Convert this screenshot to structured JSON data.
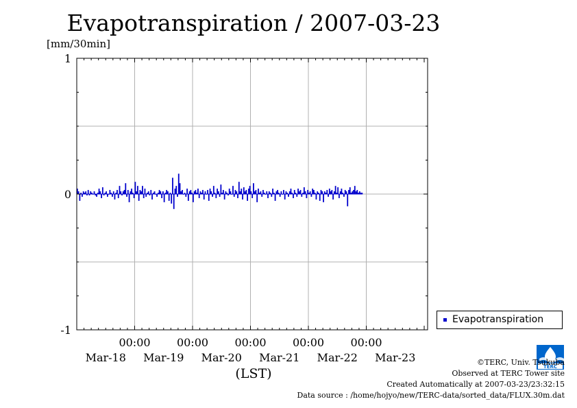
{
  "header": {
    "title": "Evapotranspiration / 2007-03-23",
    "unit": "[mm/30min]"
  },
  "chart_data": {
    "type": "bar",
    "title": "Evapotranspiration / 2007-03-23",
    "ylabel": "[mm/30min]",
    "xlabel": "(LST)",
    "ylim": [
      -1,
      1
    ],
    "yticks": [
      "1",
      "0",
      "-1"
    ],
    "xlim_days": [
      0,
      6
    ],
    "xtick_times": [
      "00:00",
      "00:00",
      "00:00",
      "00:00",
      "00:00"
    ],
    "xtick_dates": [
      "Mar-18",
      "Mar-19",
      "Mar-20",
      "Mar-21",
      "Mar-22",
      "Mar-23"
    ],
    "grid": true,
    "legend_position": "right-bottom",
    "series": [
      {
        "name": "Evapotranspiration",
        "color": "#0000cc",
        "interval": "30min",
        "start": "2007-03-17T00:00",
        "values": [
          0.04,
          0.02,
          -0.05,
          0.01,
          -0.02,
          0.02,
          0.01,
          0.02,
          -0.01,
          0.03,
          -0.01,
          0.02,
          0.01,
          0.0,
          0.02,
          -0.01,
          -0.02,
          0.01,
          0.04,
          0.02,
          -0.03,
          0.05,
          -0.01,
          0.01,
          0.02,
          -0.02,
          0.0,
          0.03,
          0.01,
          -0.02,
          0.02,
          -0.04,
          0.01,
          0.03,
          -0.03,
          0.06,
          0.02,
          -0.01,
          0.02,
          0.03,
          0.08,
          -0.02,
          0.03,
          -0.06,
          0.02,
          0.04,
          0.01,
          -0.03,
          0.09,
          0.02,
          0.06,
          -0.05,
          0.03,
          0.02,
          0.06,
          -0.03,
          0.04,
          -0.02,
          0.01,
          0.02,
          -0.01,
          0.03,
          -0.04,
          0.01,
          0.02,
          0.0,
          -0.02,
          0.01,
          0.03,
          0.02,
          -0.03,
          0.02,
          -0.06,
          0.01,
          0.03,
          0.02,
          -0.05,
          0.01,
          -0.07,
          0.12,
          -0.11,
          0.04,
          0.06,
          -0.02,
          0.15,
          0.08,
          0.02,
          0.03,
          0.0,
          0.01,
          -0.02,
          0.04,
          -0.05,
          0.02,
          0.03,
          0.01,
          -0.06,
          0.02,
          0.03,
          0.01,
          0.04,
          -0.03,
          0.02,
          0.01,
          0.03,
          -0.04,
          0.02,
          0.0,
          0.03,
          -0.05,
          0.04,
          0.02,
          -0.02,
          0.06,
          0.01,
          -0.03,
          0.04,
          0.02,
          -0.02,
          0.07,
          0.01,
          0.03,
          -0.04,
          0.02,
          0.01,
          -0.01,
          0.04,
          0.02,
          0.0,
          0.06,
          -0.02,
          0.03,
          0.02,
          -0.03,
          0.09,
          0.02,
          0.04,
          -0.04,
          0.05,
          0.02,
          0.03,
          -0.05,
          0.04,
          0.06,
          0.02,
          -0.03,
          0.08,
          0.02,
          0.03,
          -0.06,
          0.04,
          0.01,
          0.02,
          -0.02,
          0.03,
          0.01,
          0.0,
          0.02,
          -0.03,
          0.02,
          0.01,
          -0.02,
          0.04,
          0.01,
          -0.05,
          0.02,
          0.03,
          0.01,
          -0.02,
          0.02,
          0.0,
          0.03,
          -0.04,
          0.02,
          0.01,
          -0.02,
          0.02,
          0.04,
          0.01,
          -0.03,
          0.03,
          0.01,
          -0.02,
          0.04,
          0.02,
          0.03,
          -0.02,
          0.01,
          0.05,
          0.02,
          -0.03,
          0.03,
          0.01,
          0.02,
          -0.02,
          0.04,
          0.03,
          0.01,
          -0.04,
          0.02,
          0.01,
          -0.05,
          0.03,
          0.02,
          -0.06,
          0.02,
          0.01,
          0.03,
          -0.02,
          0.04,
          0.02,
          0.03,
          -0.04,
          0.02,
          0.06,
          0.01,
          0.05,
          -0.03,
          0.02,
          0.04,
          0.01,
          -0.02,
          0.03,
          0.02,
          -0.09,
          0.03,
          0.05,
          0.01,
          0.02,
          0.03,
          0.06,
          0.02,
          0.03,
          0.01,
          0.02,
          0.01,
          0.01
        ]
      }
    ]
  },
  "legend": {
    "label": "Evapotranspiration",
    "color": "#0000cc"
  },
  "credits": {
    "line1": "©TERC, Univ. Tsukuba",
    "line2": "Observed at TERC Tower site",
    "line3": "Created Automatically at 2007-03-23/23:32:15",
    "line4": "Data source : /home/hojyo/new/TERC-data/sorted_data/FLUX.30m.dat"
  },
  "logo": {
    "icon": "terc-logo",
    "color": "#0066cc"
  }
}
